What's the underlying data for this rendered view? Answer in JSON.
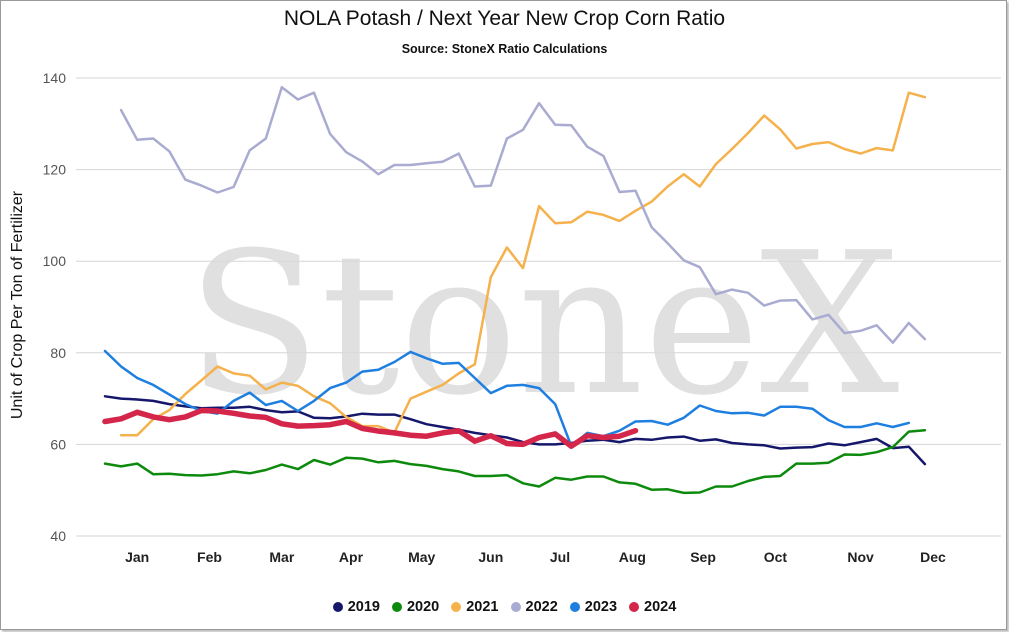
{
  "chart_data": {
    "type": "line",
    "title": "NOLA Potash / Next Year New Crop Corn Ratio",
    "subtitle": "Source: StoneX Ratio Calculations",
    "ylabel": "Unit of Crop Per Ton of Fertilizer",
    "xlabel": "",
    "watermark": "StoneX",
    "ylim": [
      40,
      145
    ],
    "yticks": [
      40,
      60,
      80,
      100,
      120,
      140
    ],
    "xlim": [
      0,
      52
    ],
    "grid": true,
    "legend_position": "bottom",
    "month_labels": [
      {
        "label": "Jan",
        "x": 2.0
      },
      {
        "label": "Feb",
        "x": 6.5
      },
      {
        "label": "Mar",
        "x": 11.0
      },
      {
        "label": "Apr",
        "x": 15.3
      },
      {
        "label": "May",
        "x": 19.7
      },
      {
        "label": "Jun",
        "x": 24.0
      },
      {
        "label": "Jul",
        "x": 28.3
      },
      {
        "label": "Aug",
        "x": 32.8
      },
      {
        "label": "Sep",
        "x": 37.2
      },
      {
        "label": "Oct",
        "x": 41.7
      },
      {
        "label": "Nov",
        "x": 47.0
      },
      {
        "label": "Dec",
        "x": 51.5
      }
    ],
    "series": [
      {
        "name": "2019",
        "color": "#15176b",
        "width": 2.5,
        "x_start": 0,
        "values": [
          70.5,
          70,
          69.8,
          69.5,
          68.8,
          68.3,
          67.9,
          68,
          68,
          68.2,
          67.5,
          67,
          67.2,
          65.8,
          65.7,
          66.1,
          66.7,
          66.5,
          66.5,
          65.5,
          64.4,
          63.8,
          63.2,
          62.5,
          62,
          61.5,
          60.5,
          60,
          60,
          60.3,
          60.8,
          61,
          60.5,
          61.2,
          61,
          61.5,
          61.7,
          60.8,
          61.1,
          60.3,
          60,
          59.8,
          59.1,
          59.3,
          59.4,
          60.2,
          59.8,
          60.5,
          61.2,
          59.2,
          59.5,
          55.7
        ]
      },
      {
        "name": "2020",
        "color": "#0d8a0d",
        "width": 2.5,
        "x_start": 0,
        "values": [
          55.8,
          55.2,
          55.8,
          53.5,
          53.6,
          53.3,
          53.2,
          53.5,
          54.1,
          53.7,
          54.4,
          55.6,
          54.6,
          56.6,
          55.6,
          57.1,
          56.9,
          56.1,
          56.4,
          55.7,
          55.3,
          54.6,
          54.1,
          53.1,
          53.1,
          53.3,
          51.5,
          50.8,
          52.7,
          52.3,
          53,
          53,
          51.7,
          51.4,
          50.1,
          50.2,
          49.4,
          49.5,
          50.8,
          50.8,
          52,
          52.9,
          53.1,
          55.8,
          55.8,
          56,
          57.8,
          57.7,
          58.3,
          59.4,
          62.8,
          63.1
        ]
      },
      {
        "name": "2021",
        "color": "#f5b14c",
        "width": 2.5,
        "x_start": 1,
        "values": [
          62,
          62,
          65.5,
          67.5,
          71,
          74,
          77,
          75.5,
          75,
          72,
          73.5,
          72.8,
          70.5,
          69,
          66,
          64,
          64,
          62.6,
          70,
          71.5,
          73,
          75.5,
          77.5,
          96.5,
          103,
          98.5,
          112,
          108.3,
          108.5,
          110.8,
          110.1,
          108.8,
          111,
          113,
          116.3,
          119,
          116.3,
          121.2,
          124.5,
          128,
          131.8,
          128.8,
          124.6,
          125.6,
          126,
          124.5,
          123.5,
          124.7,
          124.2,
          136.8,
          135.8
        ]
      },
      {
        "name": "2022",
        "color": "#a9abd1",
        "width": 2.5,
        "x_start": 1,
        "values": [
          133,
          126.5,
          126.8,
          124,
          117.8,
          116.5,
          115,
          116.2,
          124.2,
          126.8,
          138,
          135.3,
          136.8,
          127.8,
          123.8,
          121.8,
          119,
          121,
          121,
          121.4,
          121.7,
          123.5,
          116.3,
          116.5,
          126.8,
          128.7,
          134.5,
          129.8,
          129.7,
          125,
          123,
          115.1,
          115.4,
          107.4,
          103.9,
          100.2,
          98.7,
          92.8,
          93.8,
          93.1,
          90.3,
          91.4,
          91.5,
          87.3,
          88.3,
          84.3,
          84.8,
          86,
          82.2,
          86.5,
          83
        ]
      },
      {
        "name": "2023",
        "color": "#1e7fe0",
        "width": 2.5,
        "x_start": 0,
        "values": [
          80.4,
          77,
          74.5,
          73,
          70.9,
          68.8,
          67.3,
          66.7,
          69.5,
          71.3,
          68.6,
          69.5,
          67.3,
          69.5,
          72.3,
          73.5,
          75.9,
          76.3,
          78,
          80.2,
          78.8,
          77.6,
          77.8,
          74.5,
          71.2,
          72.8,
          73,
          72.3,
          68.8,
          59.7,
          62.5,
          61.8,
          63,
          65,
          65.1,
          64.3,
          65.8,
          68.5,
          67.3,
          66.8,
          66.9,
          66.3,
          68.2,
          68.2,
          67.8,
          65.3,
          63.8,
          63.8,
          64.6,
          63.8,
          64.7
        ]
      },
      {
        "name": "2024",
        "color": "#d4254a",
        "width": 5.5,
        "x_start": 0,
        "values": [
          65,
          65.6,
          67,
          66,
          65.4,
          66,
          67.4,
          67.3,
          66.8,
          66.2,
          65.9,
          64.5,
          64,
          64.1,
          64.3,
          65,
          63.5,
          62.9,
          62.5,
          62,
          61.8,
          62.5,
          63,
          60.7,
          61.9,
          60.2,
          60,
          61.5,
          62.3,
          59.6,
          61.9,
          61.5,
          61.8,
          63
        ]
      }
    ]
  }
}
